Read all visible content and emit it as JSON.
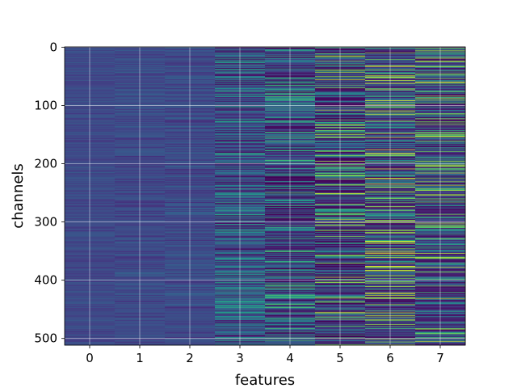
{
  "chart_data": {
    "type": "heatmap",
    "title": "",
    "xlabel": "features",
    "ylabel": "channels",
    "x_ticks": [
      0,
      1,
      2,
      3,
      4,
      5,
      6,
      7
    ],
    "y_ticks": [
      0,
      100,
      200,
      300,
      400,
      500
    ],
    "xlim": [
      -0.5,
      7.5
    ],
    "ylim": [
      511.5,
      -0.5
    ],
    "n_channels": 512,
    "n_features": 8,
    "colormap": "viridis",
    "grid": true,
    "colorbar": false,
    "column_value_ranges": [
      [
        0.2,
        0.35
      ],
      [
        0.18,
        0.38
      ],
      [
        0.17,
        0.4
      ],
      [
        0.05,
        0.7
      ],
      [
        0.0,
        0.8
      ],
      [
        0.0,
        0.95
      ],
      [
        0.05,
        1.0
      ],
      [
        0.05,
        0.95
      ]
    ]
  },
  "colors": {
    "grid": "#ffffff",
    "axis": "#000000",
    "background": "#ffffff"
  }
}
